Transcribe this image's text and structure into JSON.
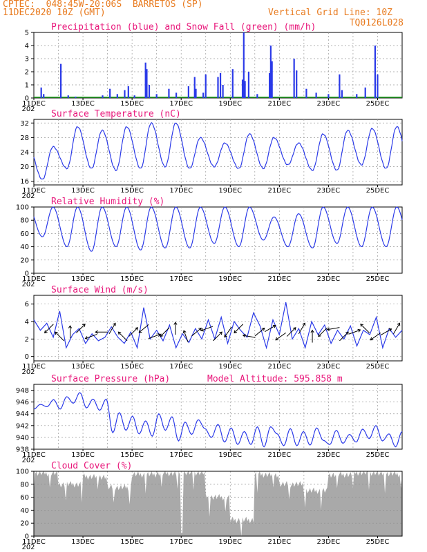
{
  "header": {
    "line1": "CPTEC:  048:45W-20:06S  BARRETOS (SP)",
    "line2_left": "11DEC2020 10Z (GMT)",
    "line2_right": "Vertical Grid Line: 10Z",
    "line3_right": "TQ0126L028"
  },
  "colors": {
    "header": "#e87a1e",
    "titles": "#e8167a",
    "precip": "#2b3ae8",
    "snow": "#1ea01e",
    "line": "#2b3ae8",
    "cloud": "#a9a9a9",
    "grid": "#9a9a9a"
  },
  "chart_data": [
    {
      "type": "bar",
      "title": "Precipitation (blue) and Snow Fall (green) (mm/h)",
      "ylim": [
        0,
        5
      ],
      "yticks": [
        0,
        1,
        2,
        3,
        4,
        5
      ],
      "xticks": [
        "11DEC",
        "13DEC",
        "15DEC",
        "17DEC",
        "19DEC",
        "21DEC",
        "23DEC",
        "25DEC"
      ],
      "x_first_tick_extra": "202",
      "precip_events": [
        [
          0.3,
          0.8
        ],
        [
          0.4,
          0.3
        ],
        [
          1.1,
          2.6
        ],
        [
          1.4,
          0.2
        ],
        [
          1.7,
          0.1
        ],
        [
          2.8,
          0.2
        ],
        [
          3.1,
          0.7
        ],
        [
          3.4,
          0.3
        ],
        [
          3.7,
          0.6
        ],
        [
          3.85,
          0.9
        ],
        [
          4.1,
          0.2
        ],
        [
          4.55,
          2.7
        ],
        [
          4.6,
          2.2
        ],
        [
          4.7,
          1.0
        ],
        [
          5.0,
          0.3
        ],
        [
          5.5,
          0.7
        ],
        [
          5.8,
          0.4
        ],
        [
          6.3,
          0.9
        ],
        [
          6.55,
          1.6
        ],
        [
          6.6,
          0.7
        ],
        [
          6.9,
          0.4
        ],
        [
          7.0,
          1.8
        ],
        [
          7.5,
          1.6
        ],
        [
          7.6,
          1.9
        ],
        [
          7.7,
          1.0
        ],
        [
          8.1,
          2.2
        ],
        [
          8.5,
          1.4
        ],
        [
          8.55,
          5.0
        ],
        [
          8.6,
          1.3
        ],
        [
          8.75,
          2.0
        ],
        [
          9.1,
          0.3
        ],
        [
          9.6,
          1.9
        ],
        [
          9.65,
          4.0
        ],
        [
          9.7,
          2.8
        ],
        [
          10.6,
          3.0
        ],
        [
          10.7,
          2.1
        ],
        [
          11.1,
          0.7
        ],
        [
          11.5,
          0.4
        ],
        [
          12.0,
          0.3
        ],
        [
          12.45,
          1.8
        ],
        [
          12.55,
          0.6
        ],
        [
          13.15,
          0.3
        ],
        [
          13.5,
          0.8
        ],
        [
          13.9,
          4.0
        ],
        [
          14.0,
          1.8
        ]
      ]
    },
    {
      "type": "line",
      "title": "Surface Temperature (nC)",
      "ylim": [
        15,
        33
      ],
      "yticks": [
        16,
        20,
        24,
        28,
        32
      ],
      "xticks": [
        "11DEC",
        "13DEC",
        "15DEC",
        "17DEC",
        "19DEC",
        "21DEC",
        "23DEC",
        "25DEC"
      ],
      "daily_min": [
        16.5,
        19.5,
        19.5,
        19.0,
        19.5,
        20.0,
        19.5,
        20.0,
        19.5,
        19.5,
        20.5,
        19.0,
        19.0,
        20.5,
        19.5
      ],
      "daily_max": [
        25.5,
        31.0,
        30.0,
        31.0,
        32.0,
        32.0,
        28.0,
        26.5,
        29.0,
        28.0,
        26.5,
        29.0,
        30.0,
        30.5,
        31.0
      ]
    },
    {
      "type": "line",
      "title": "Relative Humidity (%)",
      "ylim": [
        0,
        100
      ],
      "yticks": [
        0,
        20,
        40,
        60,
        80,
        100
      ],
      "xticks": [
        "11DEC",
        "13DEC",
        "15DEC",
        "17DEC",
        "19DEC",
        "21DEC",
        "23DEC",
        "25DEC"
      ],
      "daily_min": [
        55,
        40,
        33,
        40,
        35,
        38,
        38,
        45,
        40,
        50,
        40,
        38,
        45,
        40,
        40
      ],
      "daily_max": [
        100,
        100,
        100,
        100,
        100,
        100,
        100,
        100,
        100,
        85,
        90,
        100,
        100,
        100,
        100
      ]
    },
    {
      "type": "line",
      "title": "Surface Wind (m/s)",
      "ylim": [
        -0.5,
        7
      ],
      "yticks": [
        0,
        2,
        4,
        6
      ],
      "xticks": [
        "11DEC",
        "13DEC",
        "15DEC",
        "17DEC",
        "19DEC",
        "21DEC",
        "23DEC",
        "25DEC"
      ],
      "speed": [
        4.2,
        3.0,
        3.8,
        2.2,
        5.2,
        1.0,
        2.5,
        3.2,
        1.5,
        2.6,
        1.8,
        2.2,
        3.4,
        2.2,
        1.5,
        2.8,
        1.0,
        5.6,
        2.0,
        3.0,
        1.8,
        3.6,
        1.0,
        2.6,
        1.6,
        3.2,
        2.0,
        4.2,
        2.0,
        4.5,
        1.5,
        4.0,
        3.0,
        2.2,
        5.0,
        3.5,
        1.0,
        4.2,
        2.5,
        6.2,
        2.0,
        3.2,
        1.0,
        4.0,
        2.5,
        3.6,
        1.5,
        3.0,
        2.0,
        3.5,
        1.2,
        3.0,
        2.5,
        4.5,
        1.0,
        3.2,
        2.2,
        3.0
      ],
      "arrows_deg": [
        225,
        135,
        90,
        45,
        200,
        180,
        60,
        135,
        45,
        220,
        20,
        225,
        90,
        110,
        40,
        200,
        45,
        235,
        225,
        170,
        40,
        30,
        215,
        45,
        60,
        90,
        225,
        190,
        45,
        20,
        135,
        215,
        30,
        60
      ]
    },
    {
      "type": "line",
      "title": "Surface Pressure (hPa)",
      "annotation": "Model Altitude: 595.858  m",
      "ylim": [
        938,
        949
      ],
      "yticks": [
        938,
        940,
        942,
        944,
        946,
        948
      ],
      "xticks": [
        "11DEC",
        "13DEC",
        "15DEC",
        "17DEC",
        "19DEC",
        "21DEC",
        "23DEC",
        "25DEC"
      ],
      "values": [
        944.8,
        945.6,
        945.2,
        946.4,
        944.8,
        946.9,
        945.8,
        947.6,
        945.0,
        946.5,
        944.6,
        946.5,
        940.8,
        944.2,
        941.2,
        943.6,
        940.6,
        942.8,
        940.2,
        944.0,
        941.2,
        943.5,
        939.4,
        942.6,
        940.5,
        943.0,
        941.5,
        940.0,
        942.2,
        939.2,
        941.6,
        938.8,
        941.0,
        938.8,
        941.8,
        938.4,
        941.8,
        940.6,
        938.6,
        941.5,
        938.6,
        941.0,
        938.7,
        941.6,
        939.5,
        938.8,
        941.2,
        939.0,
        940.5,
        939.2,
        941.4,
        939.8,
        942.0,
        939.4,
        940.6,
        938.4,
        941.0
      ]
    },
    {
      "type": "area",
      "title": "Cloud Cover (%)",
      "ylim": [
        0,
        100
      ],
      "yticks": [
        0,
        20,
        40,
        60,
        80,
        100
      ],
      "xticks": [
        "11DEC",
        "13DEC",
        "15DEC",
        "17DEC",
        "19DEC",
        "21DEC",
        "23DEC",
        "25DEC"
      ],
      "daily_profile": [
        97,
        80,
        92,
        75,
        95,
        97,
        98,
        60,
        25,
        95,
        80,
        70,
        95,
        98,
        96
      ]
    }
  ]
}
